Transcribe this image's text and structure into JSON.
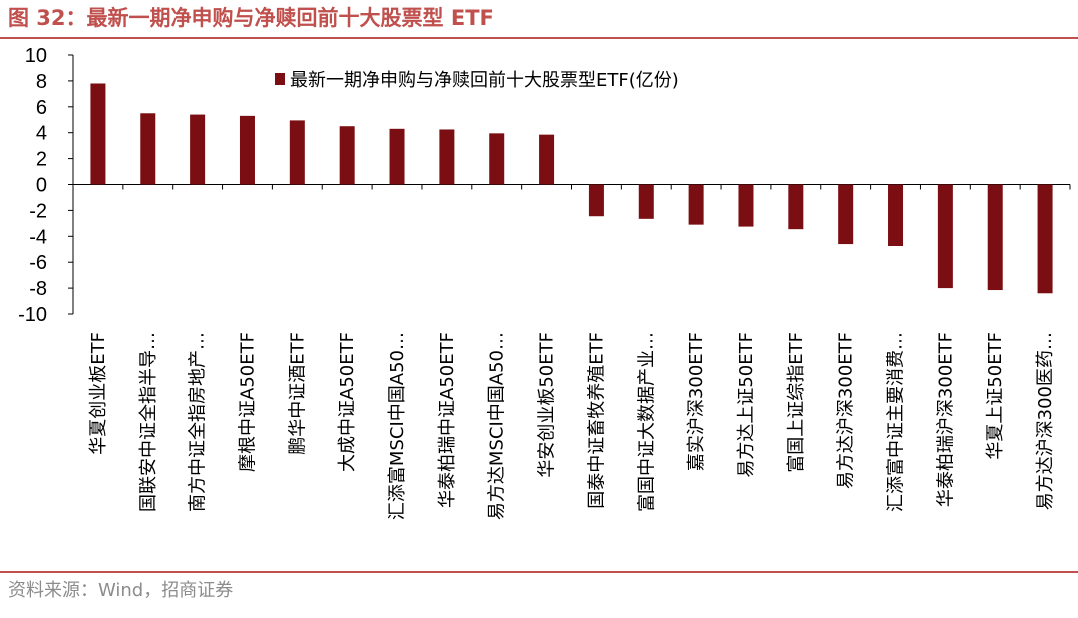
{
  "figure": {
    "title": "图 32：最新一期净申购与净赎回前十大股票型 ETF",
    "source": "资料来源：Wind，招商证券",
    "colors": {
      "accent": "#c0504d",
      "bar": "#7b0e12",
      "rule": "#c0504d"
    }
  },
  "chart_data": {
    "type": "bar",
    "title": "",
    "xlabel": "",
    "ylabel": "",
    "ylim": [
      -10,
      10
    ],
    "yticks": [
      10,
      8,
      6,
      4,
      2,
      0,
      -2,
      -4,
      -6,
      -8,
      -10
    ],
    "grid": false,
    "legend_position": "top",
    "categories": [
      "华夏创业板ETF",
      "国联安中证全指半导…",
      "南方中证全指房地产…",
      "摩根中证A50ETF",
      "鹏华中证酒ETF",
      "大成中证A50ETF",
      "汇添富MSCI中国A50…",
      "华泰柏瑞中证A50ETF",
      "易方达MSCI中国A50…",
      "华安创业板50ETF",
      "国泰中证畜牧养殖ETF",
      "富国中证大数据产业…",
      "嘉实沪深300ETF",
      "易方达上证50ETF",
      "富国上证综指ETF",
      "易方达沪深300ETF",
      "汇添富中证主要消费…",
      "华泰柏瑞沪深300ETF",
      "华夏上证50ETF",
      "易方达沪深300医药…"
    ],
    "series": [
      {
        "name": "最新一期净申购与净赎回前十大股票型ETF(亿份)",
        "color": "#7b0e12",
        "values": [
          7.8,
          5.5,
          5.4,
          5.3,
          4.95,
          4.5,
          4.3,
          4.25,
          3.95,
          3.85,
          -2.45,
          -2.65,
          -3.1,
          -3.25,
          -3.45,
          -4.6,
          -4.75,
          -8.0,
          -8.15,
          -8.4
        ]
      }
    ]
  }
}
